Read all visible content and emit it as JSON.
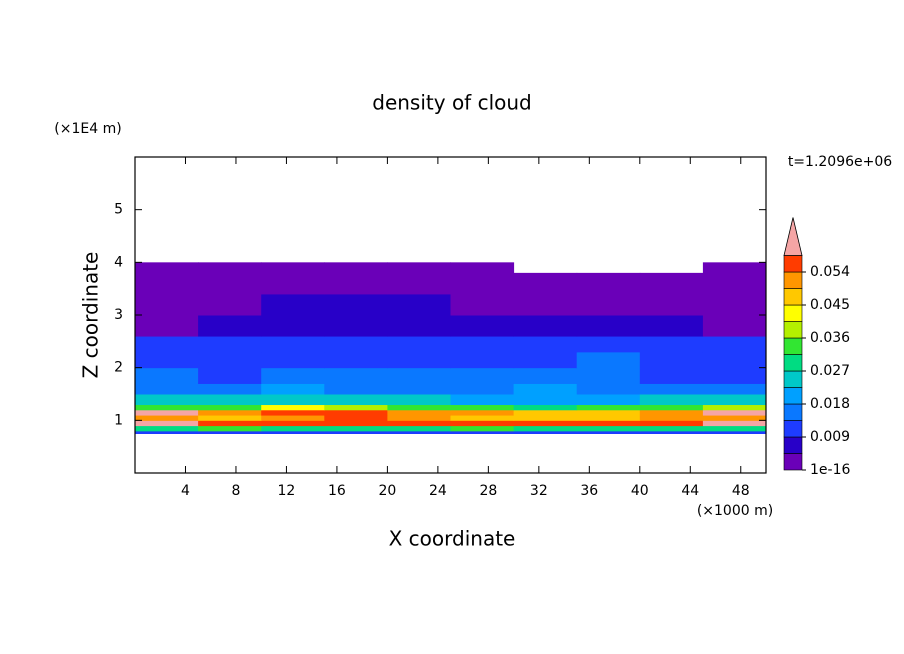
{
  "chart_data": {
    "type": "heatmap",
    "title": "density of cloud",
    "y_unit": "(×1E4 m)",
    "x_unit": "(×1000 m)",
    "time_label": "t=1.2096e+06",
    "xlabel": "X coordinate",
    "ylabel": "Z coordinate",
    "xlim": [
      0,
      50
    ],
    "ylim": [
      0,
      6
    ],
    "xticks": [
      4,
      8,
      12,
      16,
      20,
      24,
      28,
      32,
      36,
      40,
      44,
      48
    ],
    "yticks": [
      1,
      2,
      3,
      4,
      5
    ],
    "x_edges": [
      0,
      5,
      10,
      15,
      20,
      25,
      30,
      35,
      40,
      45,
      50
    ],
    "z_edges": [
      0.75,
      0.8,
      0.9,
      1.0,
      1.1,
      1.2,
      1.3,
      1.5,
      1.7,
      2.0,
      2.3,
      2.6,
      3.0,
      3.4,
      3.8,
      4.0
    ],
    "values": [
      [
        0.012,
        0.011,
        0.012,
        0.012,
        0.011,
        0.012,
        0.012,
        0.011,
        0.012,
        0.012
      ],
      [
        0.03,
        0.032,
        0.029,
        0.031,
        0.03,
        0.033,
        0.03,
        0.031,
        0.029,
        0.03
      ],
      [
        0.062,
        0.056,
        0.057,
        0.056,
        0.055,
        0.057,
        0.056,
        0.055,
        0.057,
        0.062
      ],
      [
        0.05,
        0.047,
        0.052,
        0.056,
        0.05,
        0.048,
        0.047,
        0.049,
        0.05,
        0.052
      ],
      [
        0.062,
        0.054,
        0.058,
        0.055,
        0.052,
        0.05,
        0.046,
        0.048,
        0.054,
        0.062
      ],
      [
        0.036,
        0.034,
        0.042,
        0.04,
        0.036,
        0.033,
        0.03,
        0.032,
        0.034,
        0.038
      ],
      [
        0.024,
        0.023,
        0.027,
        0.026,
        0.024,
        0.022,
        0.021,
        0.022,
        0.023,
        0.024
      ],
      [
        0.017,
        0.016,
        0.019,
        0.018,
        0.017,
        0.018,
        0.019,
        0.018,
        0.016,
        0.017
      ],
      [
        0.014,
        0.013,
        0.015,
        0.014,
        0.015,
        0.016,
        0.015,
        0.014,
        0.013,
        0.012
      ],
      [
        0.013,
        0.012,
        0.013,
        0.012,
        0.013,
        0.012,
        0.013,
        0.014,
        0.012,
        0.011
      ],
      [
        0.011,
        0.01,
        0.011,
        0.01,
        0.011,
        0.01,
        0.011,
        0.01,
        0.011,
        0.01
      ],
      [
        0.004,
        0.006,
        0.007,
        0.008,
        0.007,
        0.006,
        0.006,
        0.005,
        0.005,
        0.004
      ],
      [
        0.003,
        0.004,
        0.005,
        0.006,
        0.005,
        0.004,
        0.003,
        0.003,
        0.003,
        0.003
      ],
      [
        0.002,
        0.002,
        0.003,
        0.003,
        0.003,
        0.002,
        0.002,
        0.002,
        0.002,
        0.002
      ],
      [
        0.001,
        0.001,
        0.001,
        0.001,
        0.001,
        0.001,
        null,
        null,
        null,
        0.001
      ]
    ],
    "levels": [
      1e-16,
      0.0045,
      0.009,
      0.0135,
      0.018,
      0.0225,
      0.027,
      0.0315,
      0.036,
      0.0405,
      0.045,
      0.0495,
      0.054,
      0.0585
    ],
    "colors": [
      "#6a00b8",
      "#2800c8",
      "#1e3cff",
      "#0a78ff",
      "#00a0ff",
      "#00c8c8",
      "#00dc82",
      "#32e632",
      "#b4f000",
      "#ffff00",
      "#ffc800",
      "#ff9600",
      "#ff3c00"
    ],
    "over_color": "#f5a5a5",
    "colorbar_ticks": [
      1e-16,
      0.009,
      0.018,
      0.027,
      0.036,
      0.045,
      0.054
    ]
  }
}
